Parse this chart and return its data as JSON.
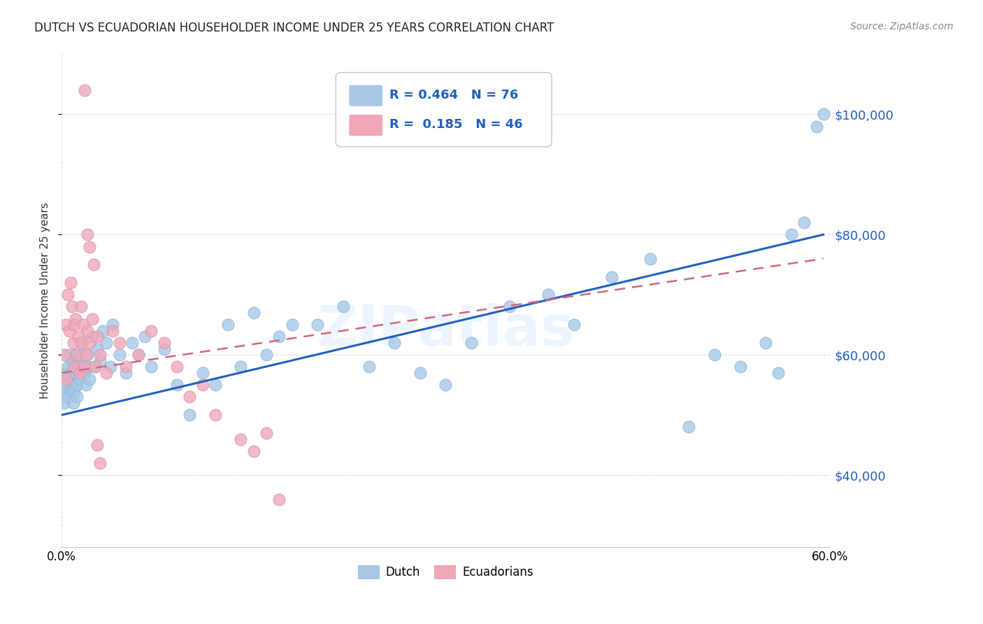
{
  "title": "DUTCH VS ECUADORIAN HOUSEHOLDER INCOME UNDER 25 YEARS CORRELATION CHART",
  "source": "Source: ZipAtlas.com",
  "ylabel": "Householder Income Under 25 years",
  "watermark": "ZIPatlas",
  "legend_dutch_R": "R = 0.464",
  "legend_dutch_N": "N = 76",
  "legend_ecu_R": "R =  0.185",
  "legend_ecu_N": "N = 46",
  "dutch_color": "#a8c8e8",
  "ecu_color": "#f0a8b8",
  "dutch_line_color": "#2060c0",
  "ecu_line_color": "#d06878",
  "ytick_labels": [
    "$40,000",
    "$60,000",
    "$80,000",
    "$100,000"
  ],
  "ytick_values": [
    40000,
    60000,
    80000,
    100000
  ],
  "xlim": [
    0.0,
    0.6
  ],
  "ylim": [
    28000,
    110000
  ],
  "dutch_x": [
    0.001,
    0.002,
    0.003,
    0.004,
    0.005,
    0.005,
    0.006,
    0.006,
    0.007,
    0.007,
    0.008,
    0.008,
    0.009,
    0.009,
    0.01,
    0.01,
    0.011,
    0.011,
    0.012,
    0.012,
    0.013,
    0.014,
    0.015,
    0.016,
    0.017,
    0.018,
    0.019,
    0.02,
    0.021,
    0.022,
    0.024,
    0.026,
    0.028,
    0.03,
    0.032,
    0.035,
    0.038,
    0.04,
    0.045,
    0.05,
    0.055,
    0.06,
    0.065,
    0.07,
    0.08,
    0.09,
    0.1,
    0.11,
    0.12,
    0.13,
    0.14,
    0.15,
    0.16,
    0.17,
    0.18,
    0.2,
    0.22,
    0.24,
    0.26,
    0.28,
    0.3,
    0.32,
    0.35,
    0.38,
    0.4,
    0.43,
    0.46,
    0.49,
    0.51,
    0.53,
    0.55,
    0.56,
    0.57,
    0.58,
    0.59,
    0.595
  ],
  "dutch_y": [
    55000,
    52000,
    54000,
    57000,
    53000,
    58000,
    56000,
    60000,
    54000,
    57000,
    55000,
    59000,
    56000,
    52000,
    54000,
    58000,
    57000,
    60000,
    55000,
    53000,
    58000,
    56000,
    60000,
    62000,
    58000,
    57000,
    55000,
    60000,
    58000,
    56000,
    63000,
    58000,
    61000,
    59000,
    64000,
    62000,
    58000,
    65000,
    60000,
    57000,
    62000,
    60000,
    63000,
    58000,
    61000,
    55000,
    50000,
    57000,
    55000,
    65000,
    58000,
    67000,
    60000,
    63000,
    65000,
    65000,
    68000,
    58000,
    62000,
    57000,
    55000,
    62000,
    68000,
    70000,
    65000,
    73000,
    76000,
    48000,
    60000,
    58000,
    62000,
    57000,
    80000,
    82000,
    98000,
    100000
  ],
  "ecu_x": [
    0.002,
    0.003,
    0.004,
    0.005,
    0.006,
    0.007,
    0.008,
    0.009,
    0.01,
    0.01,
    0.011,
    0.012,
    0.013,
    0.014,
    0.015,
    0.016,
    0.017,
    0.018,
    0.019,
    0.02,
    0.022,
    0.024,
    0.026,
    0.028,
    0.03,
    0.035,
    0.04,
    0.045,
    0.05,
    0.06,
    0.07,
    0.08,
    0.09,
    0.1,
    0.11,
    0.12,
    0.14,
    0.15,
    0.16,
    0.17,
    0.018,
    0.02,
    0.022,
    0.025,
    0.028,
    0.03
  ],
  "ecu_y": [
    60000,
    65000,
    56000,
    70000,
    64000,
    72000,
    68000,
    62000,
    65000,
    58000,
    66000,
    60000,
    63000,
    57000,
    68000,
    62000,
    65000,
    58000,
    60000,
    64000,
    62000,
    66000,
    58000,
    63000,
    60000,
    57000,
    64000,
    62000,
    58000,
    60000,
    64000,
    62000,
    58000,
    53000,
    55000,
    50000,
    46000,
    44000,
    47000,
    36000,
    104000,
    80000,
    78000,
    75000,
    45000,
    42000
  ],
  "dutch_line_x": [
    0.0,
    0.595
  ],
  "dutch_line_y": [
    50000,
    80000
  ],
  "ecu_line_x": [
    0.0,
    0.595
  ],
  "ecu_line_y": [
    57000,
    76000
  ]
}
